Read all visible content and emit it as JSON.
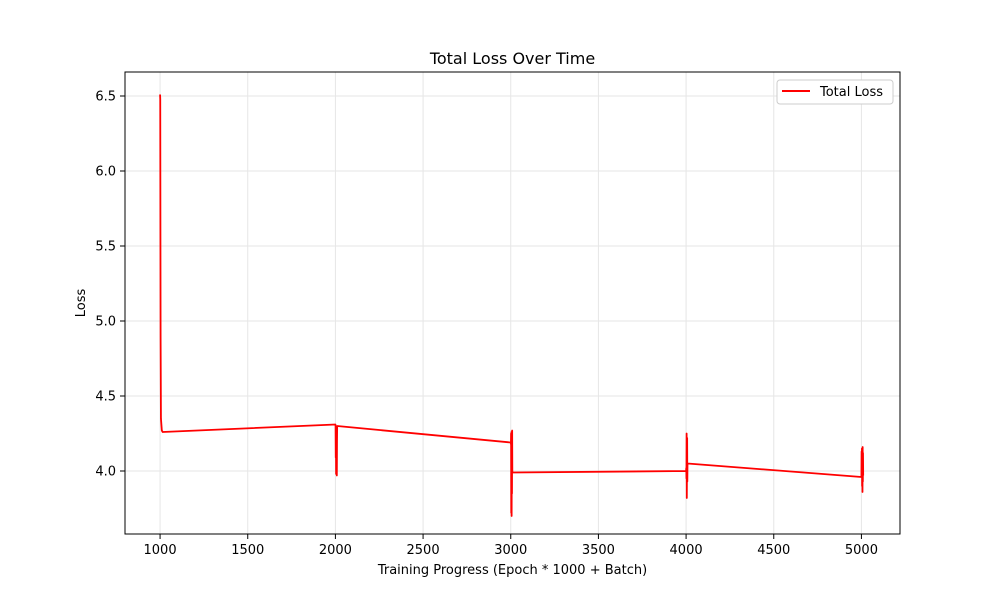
{
  "chart_data": {
    "type": "line",
    "title": "Total Loss Over Time",
    "xlabel": "Training Progress (Epoch * 1000 + Batch)",
    "ylabel": "Loss",
    "xlim": [
      800,
      5220
    ],
    "ylim": [
      3.58,
      6.66
    ],
    "xticks": [
      1000,
      1500,
      2000,
      2500,
      3000,
      3500,
      4000,
      4500,
      5000
    ],
    "yticks": [
      4.0,
      4.5,
      5.0,
      5.5,
      6.0,
      6.5
    ],
    "xtick_labels": [
      "1000",
      "1500",
      "2000",
      "2500",
      "3000",
      "3500",
      "4000",
      "4500",
      "5000"
    ],
    "ytick_labels": [
      "4.0",
      "4.5",
      "5.0",
      "5.5",
      "6.0",
      "6.5"
    ],
    "grid": true,
    "legend_position": "top-right",
    "series": [
      {
        "name": "Total Loss",
        "color": "#ff0000",
        "x": [
          1000,
          1001,
          1002,
          1003,
          1005,
          1010,
          1015,
          2000,
          2001,
          2002,
          2003,
          2004,
          2005,
          2006,
          2007,
          2008,
          2009,
          2010,
          3000,
          3001,
          3002,
          3003,
          3004,
          3005,
          3006,
          3007,
          3008,
          3009,
          3010,
          4000,
          4001,
          4002,
          4003,
          4004,
          4005,
          4006,
          4007,
          4008,
          5000,
          5001,
          5002,
          5003,
          5004,
          5005,
          5006,
          5007,
          5008,
          5009,
          5010
        ],
        "y": [
          6.51,
          6.48,
          5.6,
          4.9,
          4.35,
          4.27,
          4.26,
          4.31,
          4.3,
          4.09,
          4.29,
          3.98,
          4.27,
          4.08,
          4.24,
          3.97,
          4.2,
          4.3,
          4.19,
          4.18,
          4.25,
          3.72,
          4.26,
          3.7,
          4.24,
          3.85,
          4.27,
          4.0,
          3.99,
          4.0,
          4.02,
          3.95,
          4.25,
          3.82,
          4.05,
          4.22,
          3.93,
          4.05,
          3.96,
          4.13,
          3.98,
          4.15,
          3.9,
          4.14,
          3.86,
          4.16,
          3.93,
          4.12,
          3.97
        ]
      }
    ]
  }
}
